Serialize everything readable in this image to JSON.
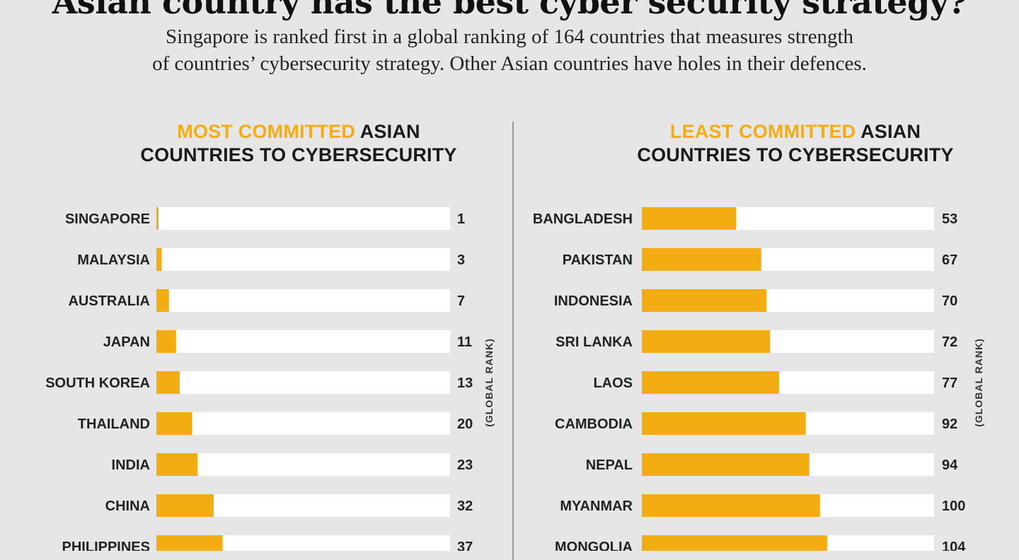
{
  "header": {
    "headline": "Asian country has the best cyber security strategy?",
    "subtitle_line1": "Singapore is ranked first in a global ranking of 164 countries that measures strength",
    "subtitle_line2": "of countries’ cybersecurity strategy. Other Asian countries have holes in their defences."
  },
  "colors": {
    "bar": "#f3ac12",
    "track": "#ffffff",
    "background": "#e6e6e6",
    "highlight_text": "#f3ac12"
  },
  "chart_data": [
    {
      "type": "bar",
      "orientation": "horizontal",
      "title_highlight": "MOST COMMITTED",
      "title_rest": "ASIAN",
      "title_line2": "COUNTRIES TO CYBERSECURITY",
      "ylabel": "(GLOBAL RANK)",
      "xlim": [
        0,
        164
      ],
      "categories": [
        "SINGAPORE",
        "MALAYSIA",
        "AUSTRALIA",
        "JAPAN",
        "SOUTH KOREA",
        "THAILAND",
        "INDIA",
        "CHINA",
        "PHILIPPINES"
      ],
      "values": [
        1,
        3,
        7,
        11,
        13,
        20,
        23,
        32,
        37
      ]
    },
    {
      "type": "bar",
      "orientation": "horizontal",
      "title_highlight": "LEAST COMMITTED",
      "title_rest": "ASIAN",
      "title_line2": "COUNTRIES TO CYBERSECURITY",
      "ylabel": "(GLOBAL RANK)",
      "xlim": [
        0,
        164
      ],
      "categories": [
        "BANGLADESH",
        "PAKISTAN",
        "INDONESIA",
        "SRI LANKA",
        "LAOS",
        "CAMBODIA",
        "NEPAL",
        "MYANMAR",
        "MONGOLIA"
      ],
      "values": [
        53,
        67,
        70,
        72,
        77,
        92,
        94,
        100,
        104
      ]
    }
  ]
}
